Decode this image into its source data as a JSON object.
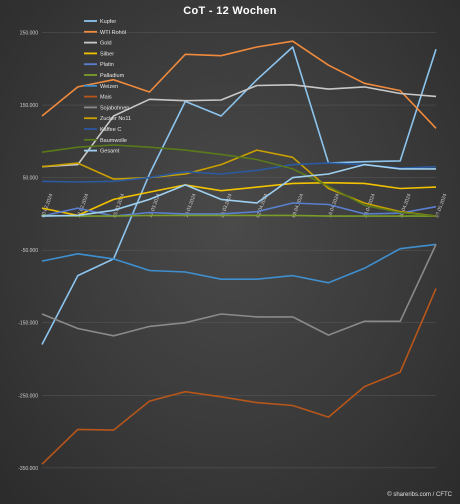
{
  "footer": "© shareribs.com / CFTC",
  "chart_data": {
    "type": "line",
    "title": "CoT - 12 Wochen",
    "xlabel": "",
    "ylabel": "",
    "x": [
      "20.02.2024",
      "27.02.2024",
      "05.03.2024",
      "12.03.2024",
      "19.03.2024",
      "26.03.2024",
      "02.04.2024",
      "09.04.2024",
      "16.04.2024",
      "23.04.2024",
      "30.04.2024",
      "07.05.2024"
    ],
    "ylim": [
      -375000,
      270000
    ],
    "yticks": [
      250000,
      150000,
      50000,
      -50000,
      -150000,
      -250000,
      -350000
    ],
    "ytick_labels": [
      "250.000",
      "150.000",
      "50.000",
      "-50.000",
      "-150.000",
      "-250.000",
      "-350.000"
    ],
    "grid": true,
    "legend_position": "top-left",
    "series": [
      {
        "name": "Kupfer",
        "color": "#8cc4ee",
        "values": [
          -180000,
          -85000,
          -62000,
          55000,
          155000,
          135000,
          185000,
          230000,
          70000,
          72000,
          73000,
          227000
        ]
      },
      {
        "name": "WTI Rohöl",
        "color": "#f08a3c",
        "values": [
          135000,
          175000,
          185000,
          168000,
          220000,
          218000,
          230000,
          238000,
          205000,
          180000,
          170000,
          118000
        ]
      },
      {
        "name": "Gold",
        "color": "#c8c8c8",
        "values": [
          65000,
          68000,
          135000,
          158000,
          156000,
          157000,
          177000,
          178000,
          172000,
          175000,
          166000,
          162000
        ]
      },
      {
        "name": "Silber",
        "color": "#f2c200",
        "values": [
          8000,
          -2000,
          20000,
          30000,
          40000,
          32000,
          37000,
          42000,
          43000,
          42000,
          35000,
          37000
        ]
      },
      {
        "name": "Platin",
        "color": "#5b7fd0",
        "values": [
          -3000,
          8000,
          -3000,
          2000,
          0,
          0,
          3000,
          15000,
          13000,
          0,
          1000,
          10000
        ]
      },
      {
        "name": "Palladium",
        "color": "#7a9c2a",
        "values": [
          -2000,
          -3000,
          -3000,
          -2000,
          -2000,
          -2000,
          -2000,
          -2000,
          -3000,
          -3000,
          -3000,
          -3000
        ]
      },
      {
        "name": "Weizen",
        "color": "#3f8fcf",
        "values": [
          -65000,
          -55000,
          -62000,
          -78000,
          -80000,
          -90000,
          -90000,
          -85000,
          -95000,
          -75000,
          -48000,
          -42000
        ]
      },
      {
        "name": "Mais",
        "color": "#b7561a",
        "values": [
          -345000,
          -297000,
          -298000,
          -258000,
          -245000,
          -252000,
          -260000,
          -264000,
          -280000,
          -238000,
          -218000,
          -103000
        ]
      },
      {
        "name": "Sojabohnen",
        "color": "#8a8a8a",
        "values": [
          -138000,
          -158000,
          -168000,
          -155000,
          -150000,
          -138000,
          -142000,
          -142000,
          -167000,
          -148000,
          -148000,
          -42000
        ]
      },
      {
        "name": "Zucker No11",
        "color": "#c9a000",
        "values": [
          65000,
          70000,
          48000,
          50000,
          55000,
          68000,
          88000,
          78000,
          35000,
          15000,
          3000,
          -3000
        ]
      },
      {
        "name": "Kaffee C",
        "color": "#2c5aa0",
        "values": [
          45000,
          44000,
          45000,
          50000,
          58000,
          55000,
          60000,
          68000,
          70000,
          68000,
          63000,
          65000
        ]
      },
      {
        "name": "Baumwolle",
        "color": "#5a7a1a",
        "values": [
          85000,
          92000,
          95000,
          92000,
          88000,
          82000,
          75000,
          62000,
          38000,
          12000,
          2000,
          -3000
        ]
      },
      {
        "name": "Gesamt",
        "color": "#9fd0f0",
        "values": [
          -3000,
          -2000,
          5000,
          20000,
          40000,
          20000,
          15000,
          50000,
          55000,
          68000,
          62000,
          62000
        ]
      }
    ]
  }
}
